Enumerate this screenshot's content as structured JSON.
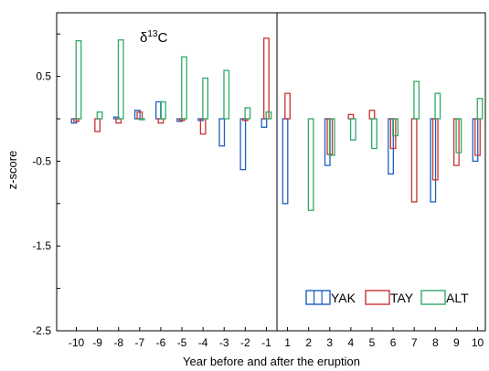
{
  "chart_data": {
    "type": "bar",
    "title": "δ",
    "title_sup": "13",
    "title_suffix": "C",
    "xlabel": "Year before and after the eruption",
    "ylabel": "z-score",
    "ylim": [
      -2.5,
      1.25
    ],
    "yticks": [
      "0.5",
      "-0.5",
      "-1.5",
      "-2.5"
    ],
    "ytick_values": [
      0.5,
      -0.5,
      -1.5,
      -2.5
    ],
    "categories": [
      "-10",
      "-9",
      "-8",
      "-7",
      "-6",
      "-5",
      "-4",
      "-3",
      "-2",
      "-1",
      "1",
      "2",
      "3",
      "4",
      "5",
      "6",
      "7",
      "8",
      "9",
      "10"
    ],
    "eruption_divider": "between -1 and 1",
    "series": [
      {
        "name": "YAK",
        "color": "#1f5fbf",
        "values": [
          -0.05,
          null,
          0.02,
          0.1,
          0.2,
          -0.03,
          -0.02,
          -0.32,
          -0.6,
          -0.1,
          -1.0,
          null,
          -0.55,
          null,
          null,
          -0.65,
          null,
          -0.98,
          null,
          -0.5
        ]
      },
      {
        "name": "TAY",
        "color": "#c83232",
        "values": [
          -0.03,
          -0.15,
          -0.05,
          0.08,
          -0.05,
          -0.02,
          -0.18,
          null,
          -0.02,
          0.95,
          0.3,
          null,
          -0.42,
          0.05,
          0.1,
          -0.35,
          -0.98,
          -0.72,
          -0.55,
          -0.43
        ]
      },
      {
        "name": "ALT",
        "color": "#2eaa66",
        "values": [
          0.92,
          0.08,
          0.93,
          0.0,
          0.2,
          0.73,
          0.48,
          0.57,
          0.13,
          0.08,
          null,
          -1.08,
          -0.43,
          -0.25,
          -0.35,
          -0.2,
          0.44,
          0.3,
          -0.4,
          0.24
        ]
      }
    ],
    "legend": {
      "placement": "bottom-right",
      "entries": [
        "YAK",
        "TAY",
        "ALT"
      ]
    },
    "grid": false
  }
}
